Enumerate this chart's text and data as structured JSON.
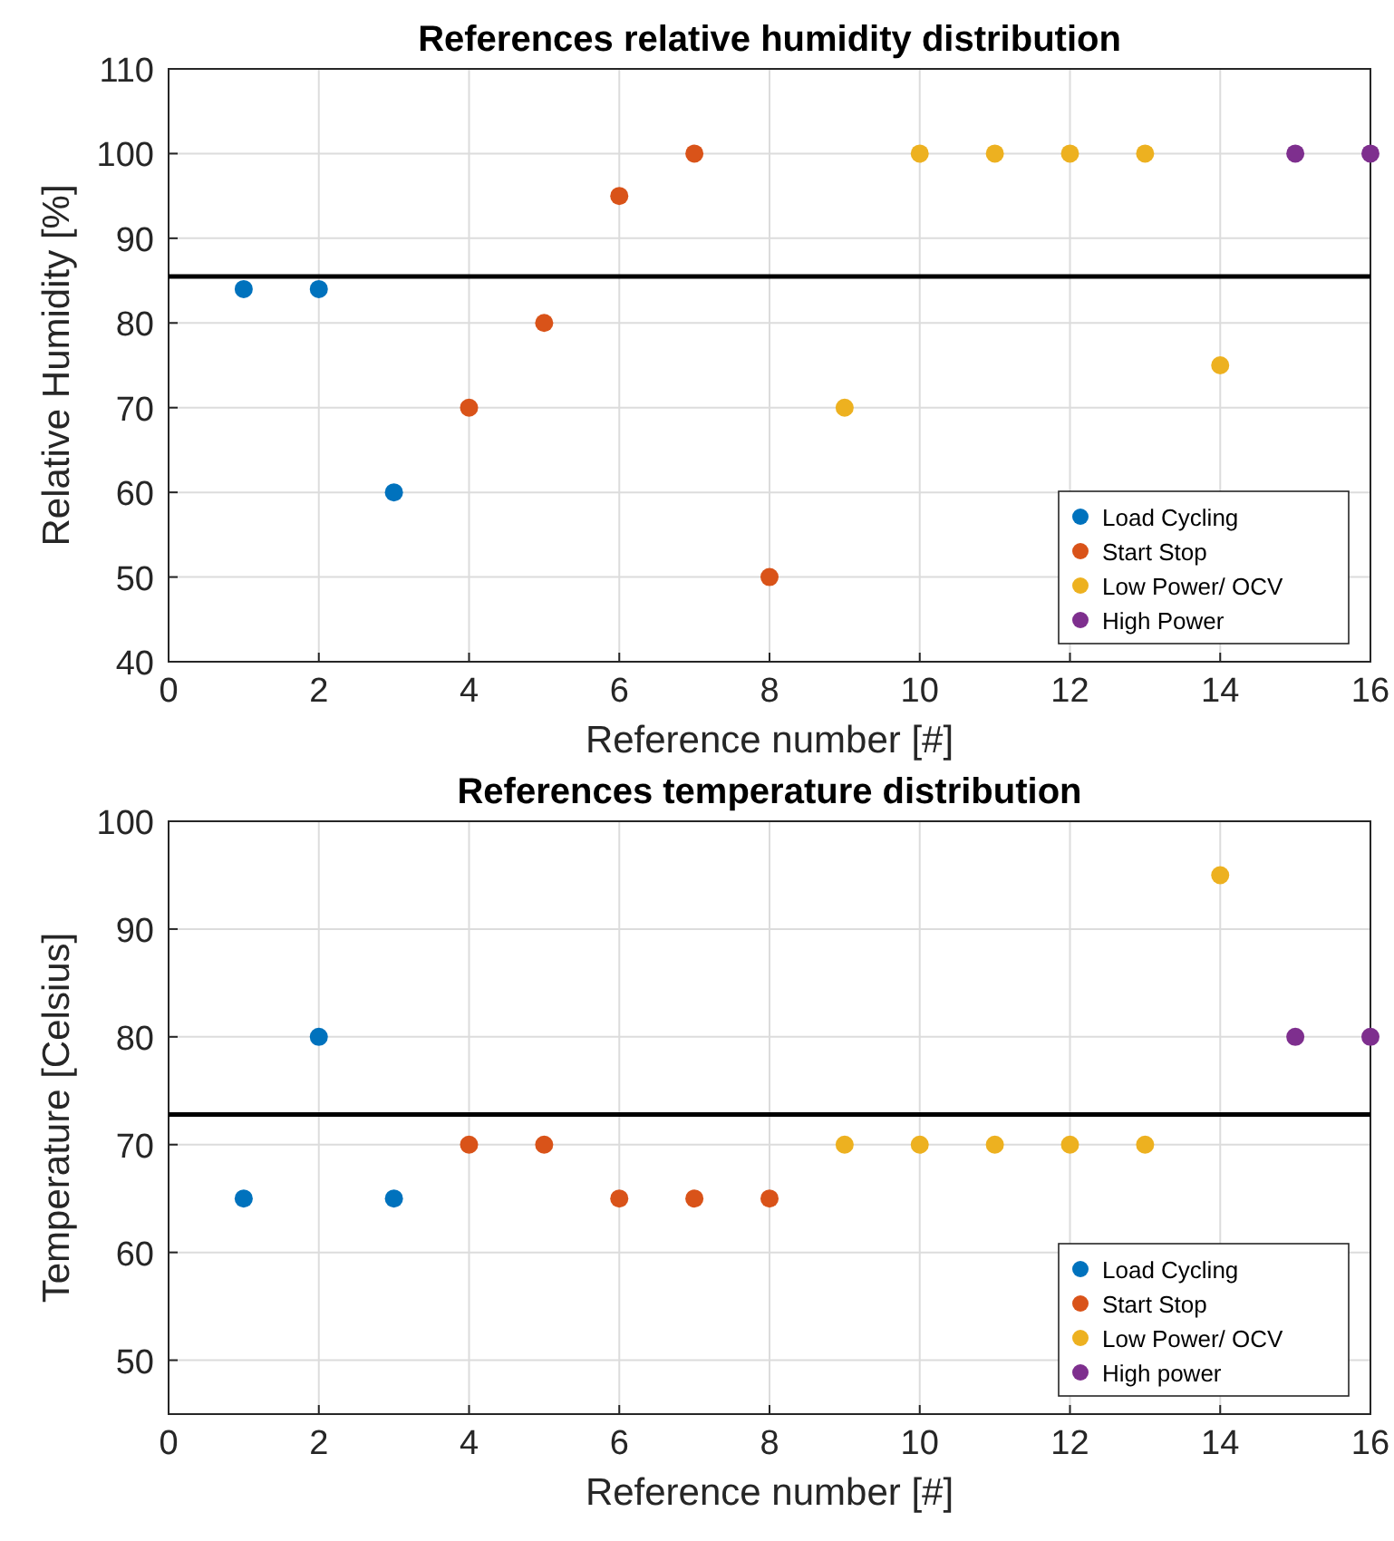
{
  "chart_data": [
    {
      "type": "scatter",
      "title": "References relative humidity distribution",
      "xlabel": "Reference number [#]",
      "ylabel": "Relative Humidity [%]",
      "xlim": [
        0,
        16
      ],
      "xticks": [
        0,
        2,
        4,
        6,
        8,
        10,
        12,
        14,
        16
      ],
      "ylim": [
        40,
        110
      ],
      "yticks": [
        40,
        50,
        60,
        70,
        80,
        90,
        100,
        110
      ],
      "grid": true,
      "legend": "bottom right",
      "marker": "circle",
      "ref_lines": [
        {
          "axis": "y",
          "value": 85.5,
          "color": "#000000"
        }
      ],
      "series": [
        {
          "name": "Load Cycling",
          "color": "#0072bd",
          "x": [
            1,
            2,
            3
          ],
          "values": [
            84,
            84,
            60
          ]
        },
        {
          "name": "Start Stop",
          "color": "#d95319",
          "x": [
            4,
            5,
            6,
            7,
            8
          ],
          "values": [
            70,
            80,
            95,
            100,
            50
          ]
        },
        {
          "name": "Low Power/ OCV",
          "color": "#edb120",
          "x": [
            9,
            10,
            11,
            12,
            13,
            14
          ],
          "values": [
            70,
            100,
            100,
            100,
            100,
            75
          ]
        },
        {
          "name": "High Power",
          "color": "#7e2f8e",
          "x": [
            15,
            16
          ],
          "values": [
            100,
            100
          ]
        }
      ]
    },
    {
      "type": "scatter",
      "title": "References temperature distribution",
      "xlabel": "Reference number [#]",
      "ylabel": "Temperature [Celsius]",
      "xlim": [
        0,
        16
      ],
      "xticks": [
        0,
        2,
        4,
        6,
        8,
        10,
        12,
        14,
        16
      ],
      "ylim": [
        45,
        100
      ],
      "yticks": [
        50,
        60,
        70,
        80,
        90,
        100
      ],
      "grid": true,
      "legend": "bottom right",
      "marker": "circle",
      "ref_lines": [
        {
          "axis": "y",
          "value": 72.8,
          "color": "#000000"
        }
      ],
      "series": [
        {
          "name": "Load Cycling",
          "color": "#0072bd",
          "x": [
            1,
            2,
            3
          ],
          "values": [
            65,
            80,
            65
          ]
        },
        {
          "name": "Start Stop",
          "color": "#d95319",
          "x": [
            4,
            5,
            6,
            7,
            8
          ],
          "values": [
            70,
            70,
            65,
            65,
            65
          ]
        },
        {
          "name": "Low Power/ OCV",
          "color": "#edb120",
          "x": [
            9,
            10,
            11,
            12,
            13,
            14
          ],
          "values": [
            70,
            70,
            70,
            70,
            70,
            95
          ]
        },
        {
          "name": "High power",
          "color": "#7e2f8e",
          "x": [
            15,
            16
          ],
          "values": [
            80,
            80
          ]
        }
      ]
    }
  ]
}
